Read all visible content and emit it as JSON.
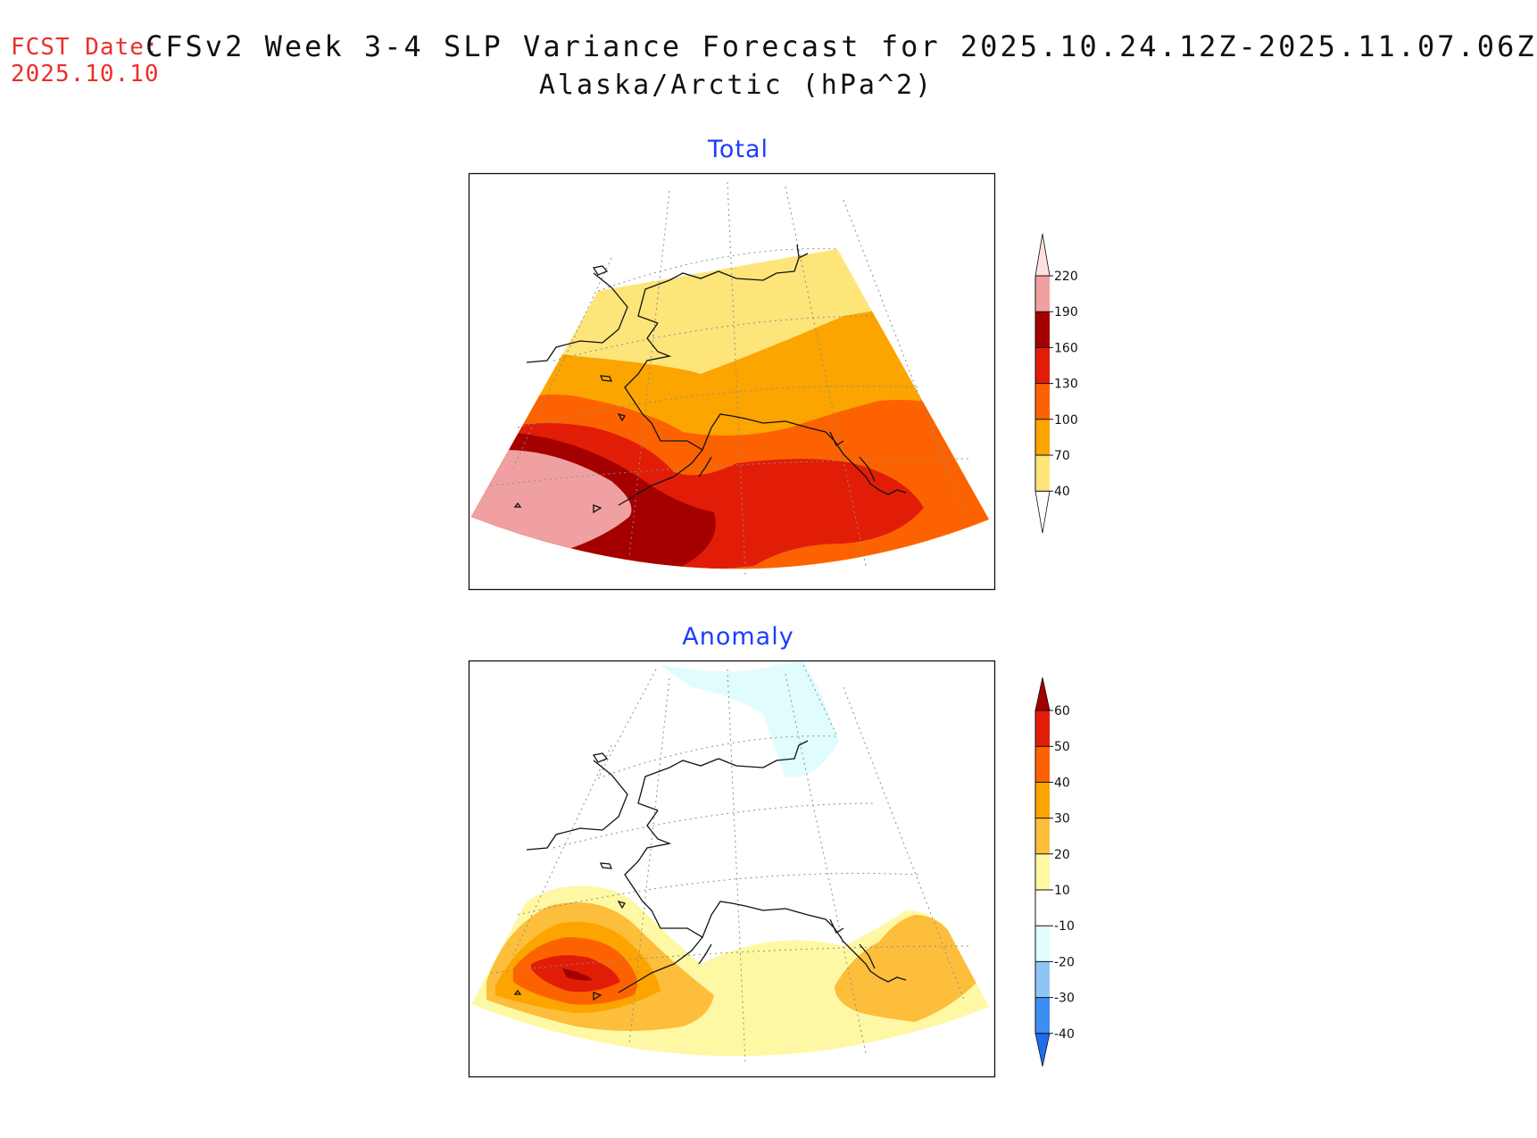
{
  "header": {
    "fcst_label": "FCST Date:",
    "fcst_date": "2025.10.10",
    "title": "CFSv2 Week 3-4 SLP Variance Forecast for 2025.10.24.12Z-2025.11.07.06Z",
    "subtitle": "Alaska/Arctic (hPa^2)"
  },
  "panels": [
    {
      "id": "total",
      "title": "Total"
    },
    {
      "id": "anomaly",
      "title": "Anomaly"
    }
  ],
  "total_colorbar": {
    "labels": [
      "40",
      "70",
      "100",
      "130",
      "160",
      "190",
      "220"
    ],
    "colors": [
      "#ffffff",
      "#fde57a",
      "#fca400",
      "#fc6300",
      "#e11d08",
      "#a50000",
      "#f0a0a0",
      "#fde0e0"
    ]
  },
  "anomaly_colorbar": {
    "labels": [
      "-40",
      "-30",
      "-20",
      "-10",
      "10",
      "20",
      "30",
      "40",
      "50",
      "60"
    ],
    "colors": [
      "#1e6cf0",
      "#3d8ef2",
      "#8fc4f7",
      "#e0fcfd",
      "#ffffff",
      "#fef8a4",
      "#fdbe3c",
      "#fca400",
      "#fc6300",
      "#e11d08",
      "#a50000"
    ]
  },
  "colors": {
    "fcst_red": "#e8302b",
    "panel_title_blue": "#1f3cff"
  }
}
